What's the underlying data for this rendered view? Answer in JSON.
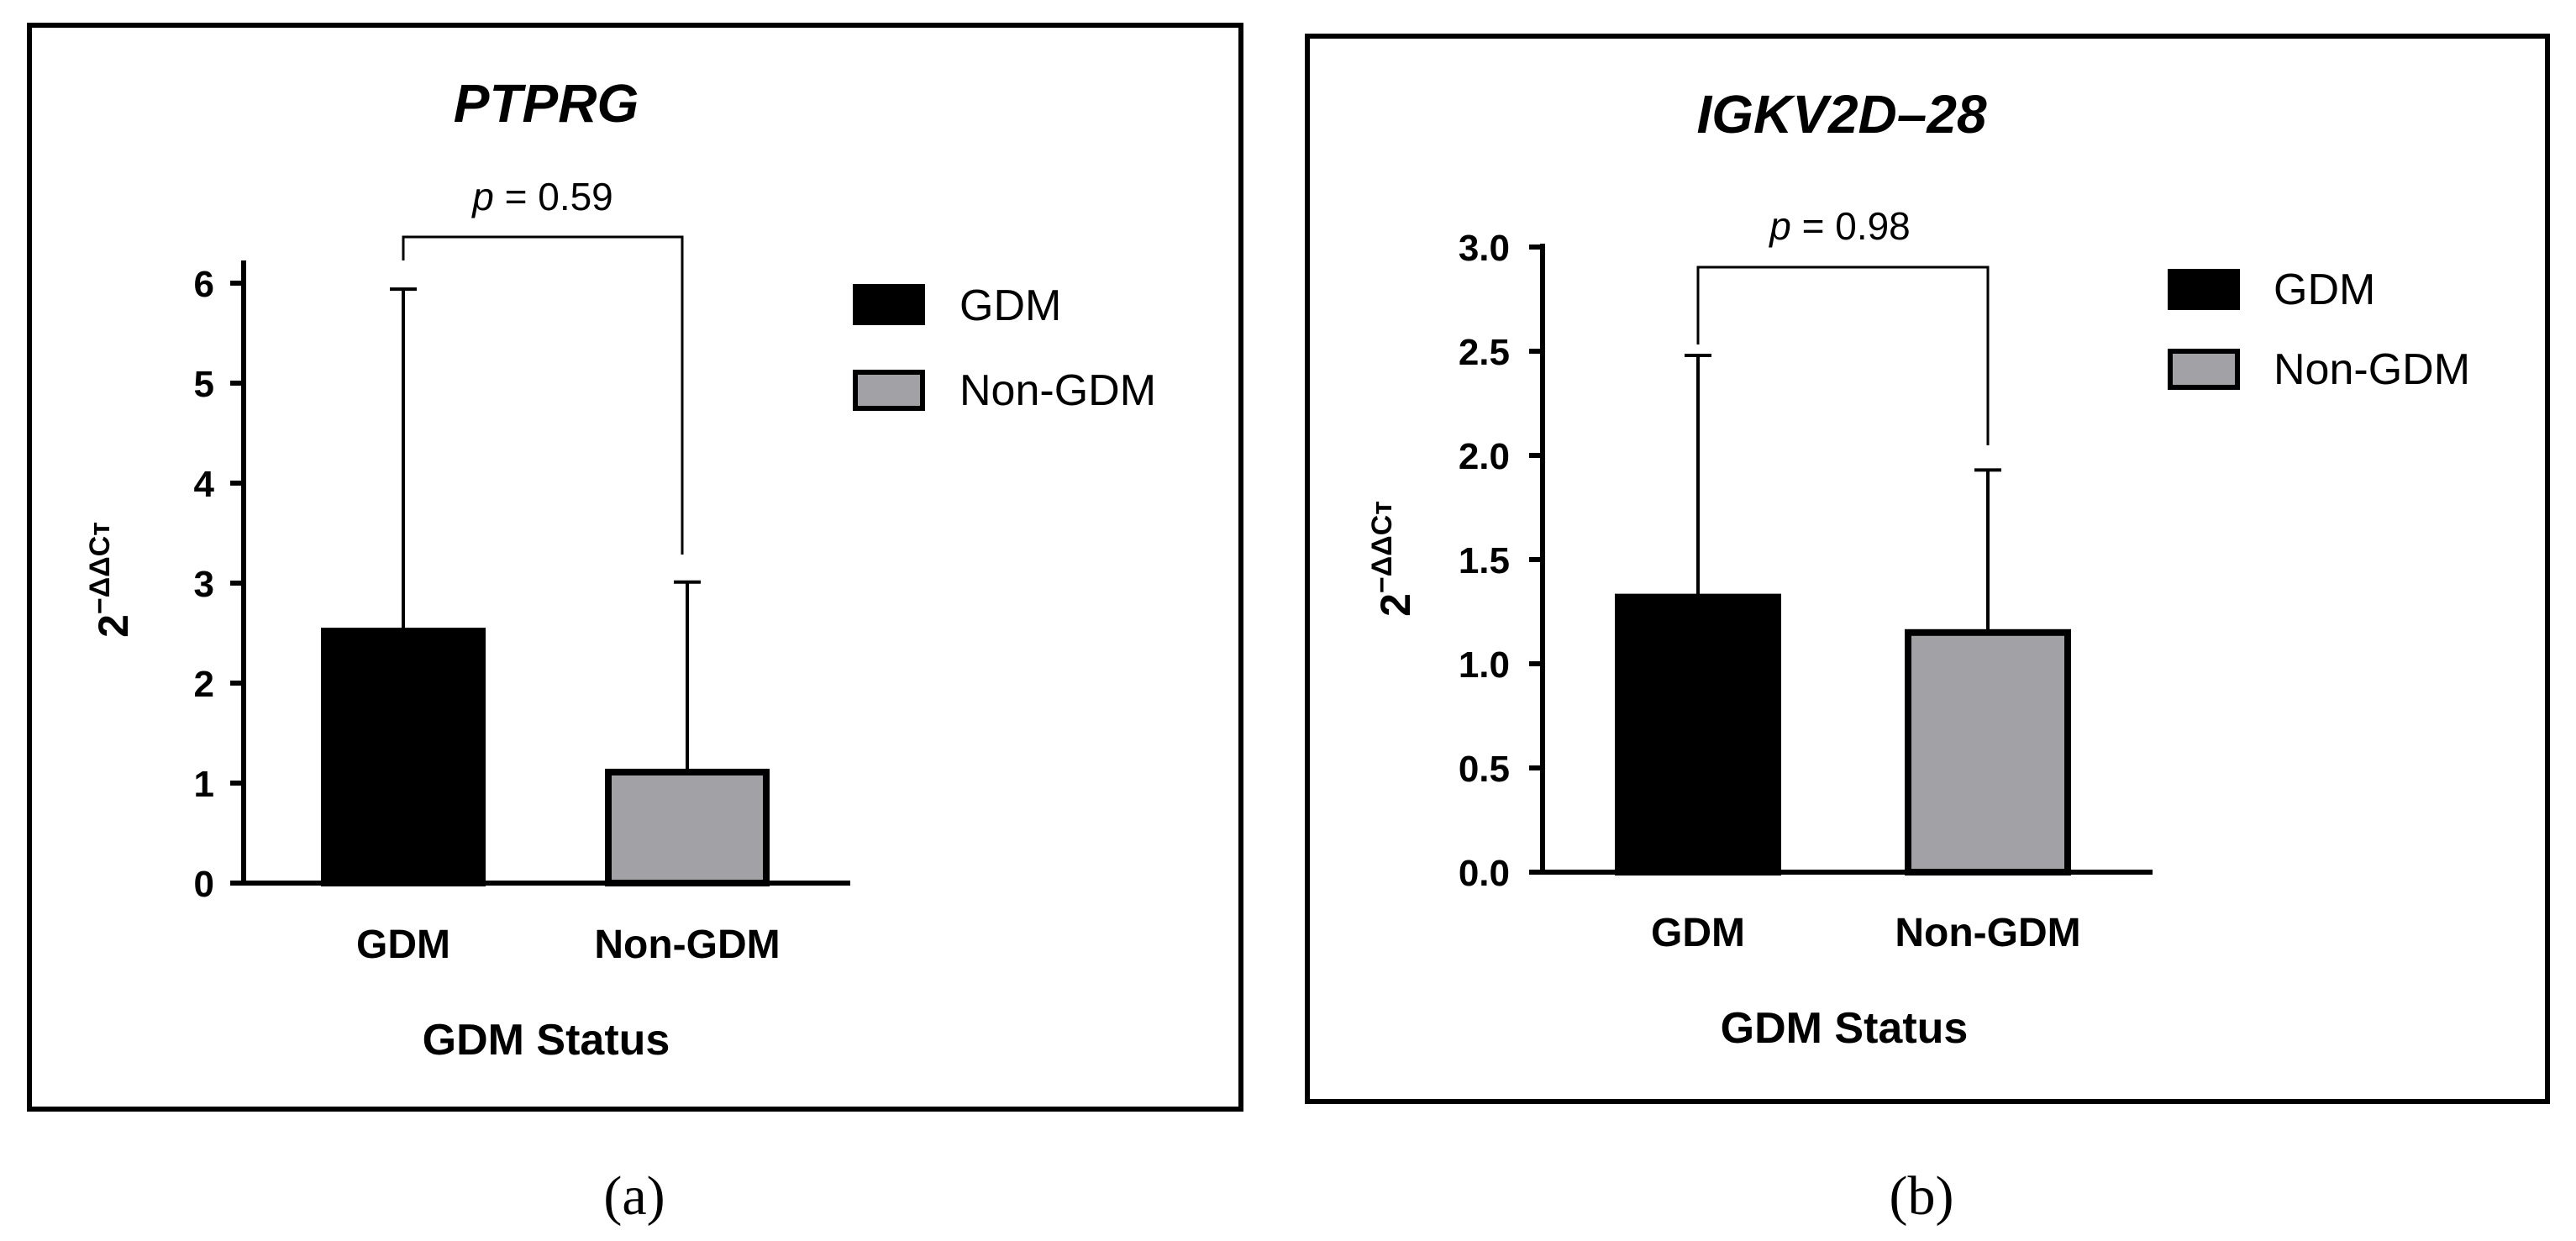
{
  "colors": {
    "gdm": "#000000",
    "non_gdm": "#a2a2a6",
    "line": "#000000"
  },
  "chart_data": [
    {
      "type": "bar",
      "panel_label": "(a)",
      "title": "PTPRG",
      "xlabel": "GDM Status",
      "ylabel": "2",
      "ylabel_superscript": "−ΔΔCт",
      "categories": [
        "GDM",
        "Non-GDM"
      ],
      "values": [
        2.52,
        1.11
      ],
      "errors": [
        3.42,
        1.9
      ],
      "ylim": [
        0,
        6
      ],
      "yticks": [
        "0",
        "1",
        "2",
        "3",
        "4",
        "5",
        "6"
      ],
      "legend": [
        "GDM",
        "Non-GDM"
      ],
      "legend_position": "top-right",
      "annotation": {
        "p_symbol": "p",
        "p_value": " = 0.59"
      }
    },
    {
      "type": "bar",
      "panel_label": "(b)",
      "title": "IGKV2D–28",
      "xlabel": "GDM Status",
      "ylabel": "2",
      "ylabel_superscript": "−ΔΔCт",
      "categories": [
        "GDM",
        "Non-GDM"
      ],
      "values": [
        1.32,
        1.15
      ],
      "errors": [
        1.16,
        0.78
      ],
      "ylim": [
        0,
        3
      ],
      "yticks": [
        "0.0",
        "0.5",
        "1.0",
        "1.5",
        "2.0",
        "2.5",
        "3.0"
      ],
      "legend": [
        "GDM",
        "Non-GDM"
      ],
      "legend_position": "top-right",
      "annotation": {
        "p_symbol": "p",
        "p_value": " = 0.98"
      }
    }
  ]
}
